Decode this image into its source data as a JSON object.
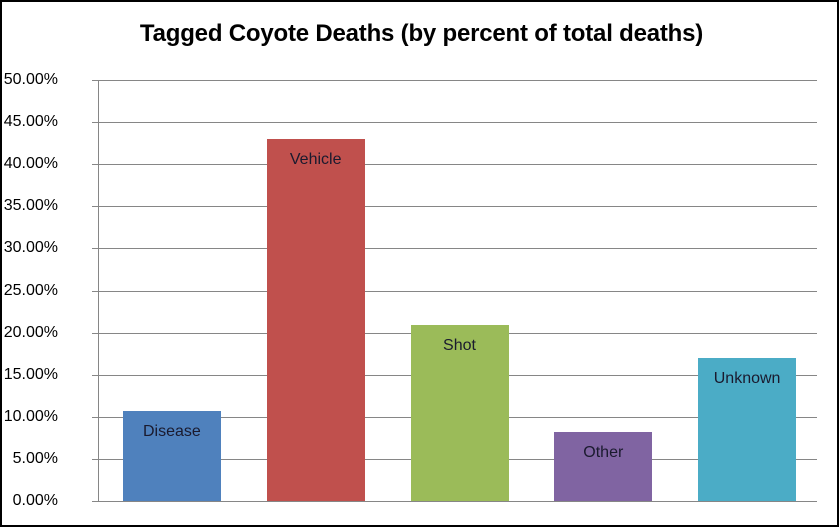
{
  "chart_data": {
    "type": "bar",
    "title": "Tagged Coyote Deaths (by percent of total deaths)",
    "xlabel": "",
    "ylabel": "",
    "categories": [
      "Disease",
      "Vehicle",
      "Shot",
      "Other",
      "Unknown"
    ],
    "values": [
      10.7,
      43.0,
      20.9,
      8.2,
      17.0
    ],
    "value_format": "percent",
    "colors": [
      "#4f81bd",
      "#c0504d",
      "#9bbb59",
      "#8064a2",
      "#4bacc6"
    ],
    "ylim": [
      0,
      50
    ],
    "yticks": [
      "0.00%",
      "5.00%",
      "10.00%",
      "15.00%",
      "20.00%",
      "25.00%",
      "30.00%",
      "35.00%",
      "40.00%",
      "45.00%",
      "50.00%"
    ],
    "grid": true,
    "legend": "none",
    "data_labels": "category name inside top of each bar"
  },
  "chart": {
    "title": "Tagged Coyote Deaths (by percent of total deaths)",
    "yticks": [
      "0.00%",
      "5.00%",
      "10.00%",
      "15.00%",
      "20.00%",
      "25.00%",
      "30.00%",
      "35.00%",
      "40.00%",
      "45.00%",
      "50.00%"
    ],
    "bars": [
      {
        "label": "Disease",
        "value": 10.7,
        "color": "#4f81bd"
      },
      {
        "label": "Vehicle",
        "value": 43.0,
        "color": "#c0504d"
      },
      {
        "label": "Shot",
        "value": 20.9,
        "color": "#9bbb59"
      },
      {
        "label": "Other",
        "value": 8.2,
        "color": "#8064a2"
      },
      {
        "label": "Unknown",
        "value": 17.0,
        "color": "#4bacc6"
      }
    ]
  }
}
